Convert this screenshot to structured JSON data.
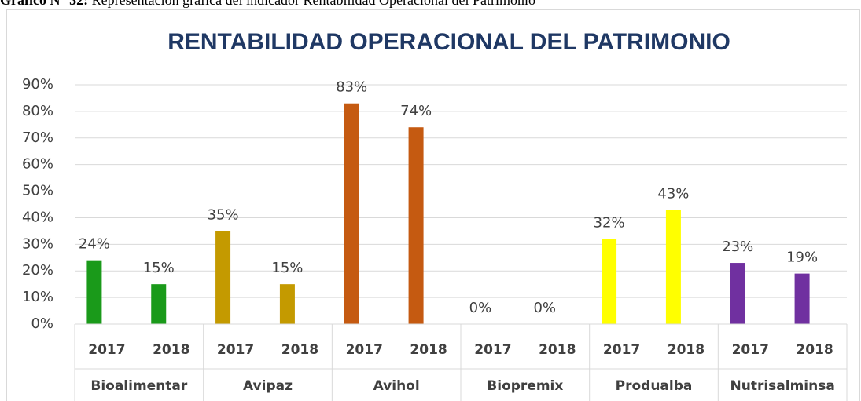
{
  "caption": {
    "label": "Gráfico N° 32:",
    "text": "Representación gráfica del indicador Rentabilidad Operacional del Patrimonio"
  },
  "chart_data": {
    "type": "bar",
    "title": "RENTABILIDAD OPERACIONAL DEL PATRIMONIO",
    "groups": [
      {
        "name": "Bioalimentar",
        "categories": [
          "2017",
          "2018"
        ],
        "values": [
          24,
          15
        ],
        "value_labels": [
          "24%",
          "15%"
        ],
        "color": "#1a9a1a"
      },
      {
        "name": "Avipaz",
        "categories": [
          "2017",
          "2018"
        ],
        "values": [
          35,
          15
        ],
        "value_labels": [
          "35%",
          "15%"
        ],
        "color": "#c49a00"
      },
      {
        "name": "Avihol",
        "categories": [
          "2017",
          "2018"
        ],
        "values": [
          83,
          74
        ],
        "value_labels": [
          "83%",
          "74%"
        ],
        "color": "#c55a11"
      },
      {
        "name": "Biopremix",
        "categories": [
          "2017",
          "2018"
        ],
        "values": [
          0,
          0
        ],
        "value_labels": [
          "0%",
          "0%"
        ]
      },
      {
        "name": "Produalba",
        "categories": [
          "2017",
          "2018"
        ],
        "values": [
          32,
          43
        ],
        "value_labels": [
          "32%",
          "43%"
        ],
        "color": "#ffff00"
      },
      {
        "name": "Nutrisalminsa",
        "categories": [
          "2017",
          "2018"
        ],
        "values": [
          23,
          19
        ],
        "value_labels": [
          "23%",
          "19%"
        ],
        "color": "#7030a0"
      }
    ],
    "ylim": [
      0,
      90
    ],
    "yticks": [
      {
        "value": 0,
        "label": "0%"
      },
      {
        "value": 10,
        "label": "10%"
      },
      {
        "value": 20,
        "label": "20%"
      },
      {
        "value": 30,
        "label": "30%"
      },
      {
        "value": 40,
        "label": "40%"
      },
      {
        "value": 50,
        "label": "50%"
      },
      {
        "value": 60,
        "label": "60%"
      },
      {
        "value": 70,
        "label": "70%"
      },
      {
        "value": 80,
        "label": "80%"
      },
      {
        "value": 90,
        "label": "90%"
      }
    ],
    "grid": true
  }
}
